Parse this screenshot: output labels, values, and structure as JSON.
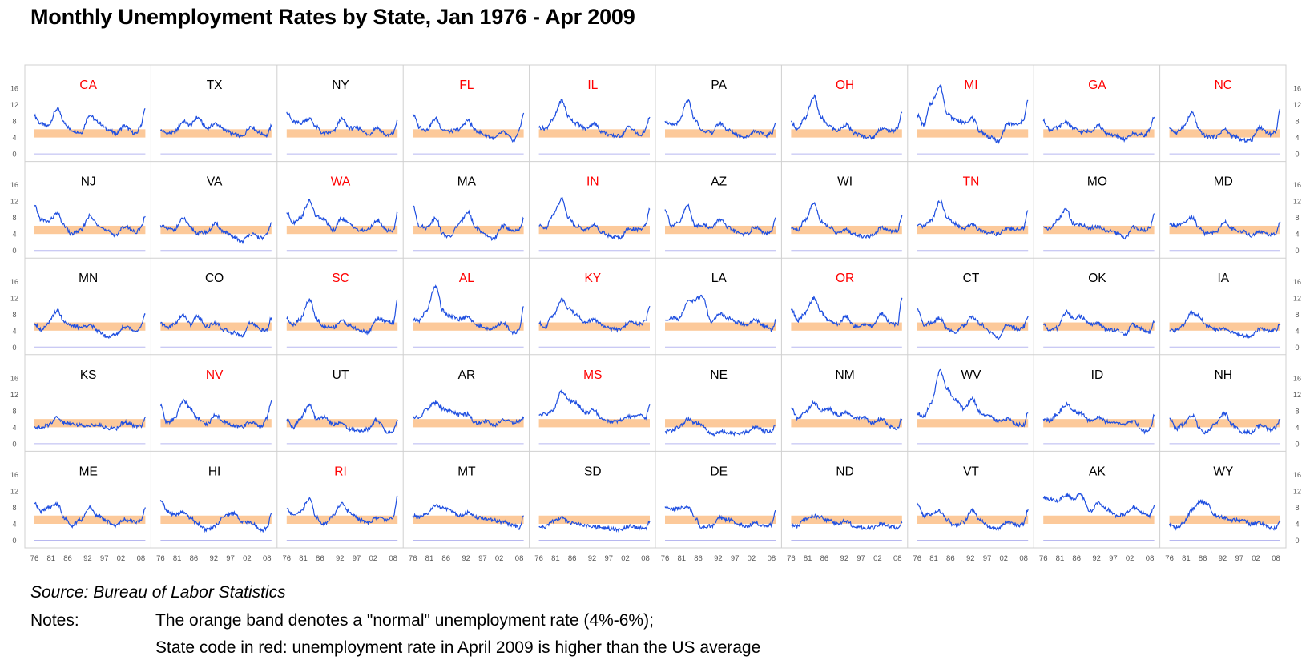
{
  "title": "Monthly Unemployment Rates by State, Jan 1976 - Apr 2009",
  "source": "Source: Bureau of Labor Statistics",
  "notes_label": "Notes:",
  "notes": [
    "The orange band denotes a \"normal\" unemployment rate (4%-6%);",
    "State code in red: unemployment rate in April 2009 is higher than the US average"
  ],
  "colors": {
    "line": "#1f4fe0",
    "band": "#fcc99a",
    "highlight": "#ff0000",
    "normal_label": "#000000",
    "frame": "#d0d0d0",
    "baseline": "#b8b8f0",
    "tick_text": "#555555"
  },
  "chart_data": {
    "type": "line",
    "layout": "small-multiples",
    "x_label_years": [
      "76",
      "81",
      "86",
      "92",
      "97",
      "02",
      "08"
    ],
    "y_ticks": [
      0,
      4,
      8,
      12,
      16
    ],
    "ylim": [
      0,
      17
    ],
    "xlim": [
      1976.0,
      2009.33
    ],
    "band": [
      4,
      6
    ],
    "anchor_years": [
      1976,
      1978,
      1980,
      1982.9,
      1985,
      1987,
      1990,
      1992.5,
      1995,
      1998,
      2000.5,
      2003,
      2006.5,
      2008,
      2009.3
    ],
    "states": [
      {
        "code": "CA",
        "red": true,
        "values": [
          9.2,
          7.2,
          6.8,
          11.0,
          7.6,
          5.8,
          5.2,
          9.5,
          7.8,
          6.0,
          4.9,
          6.8,
          4.8,
          7.0,
          11.0
        ]
      },
      {
        "code": "TX",
        "red": false,
        "values": [
          5.7,
          5.0,
          5.2,
          7.9,
          7.0,
          8.9,
          6.2,
          7.4,
          6.0,
          4.8,
          4.2,
          6.7,
          4.9,
          4.5,
          6.7
        ]
      },
      {
        "code": "NY",
        "red": false,
        "values": [
          10.2,
          7.8,
          7.5,
          8.6,
          6.5,
          4.9,
          5.4,
          8.5,
          6.3,
          6.2,
          4.6,
          6.4,
          4.4,
          5.0,
          8.1
        ]
      },
      {
        "code": "FL",
        "red": true,
        "values": [
          9.7,
          6.5,
          5.8,
          8.6,
          6.0,
          5.4,
          6.0,
          8.2,
          5.6,
          4.6,
          3.8,
          5.3,
          3.3,
          5.8,
          10.0
        ]
      },
      {
        "code": "IL",
        "red": true,
        "values": [
          6.4,
          6.2,
          8.2,
          13.0,
          9.0,
          7.5,
          6.2,
          7.5,
          5.4,
          4.4,
          4.4,
          6.6,
          4.5,
          5.8,
          9.0
        ]
      },
      {
        "code": "PA",
        "red": false,
        "values": [
          8.0,
          7.0,
          7.6,
          13.0,
          8.4,
          5.8,
          5.2,
          7.5,
          5.8,
          4.6,
          4.1,
          5.6,
          4.5,
          5.0,
          7.6
        ]
      },
      {
        "code": "OH",
        "red": true,
        "values": [
          7.8,
          5.9,
          8.5,
          14.0,
          8.9,
          7.0,
          5.6,
          7.2,
          5.0,
          4.3,
          4.0,
          6.2,
          5.5,
          6.5,
          10.0
        ]
      },
      {
        "code": "MI",
        "red": true,
        "values": [
          9.5,
          7.0,
          12.2,
          16.5,
          10.0,
          8.5,
          7.5,
          8.8,
          5.4,
          4.0,
          3.0,
          7.3,
          7.1,
          8.5,
          13.0
        ]
      },
      {
        "code": "GA",
        "red": true,
        "values": [
          8.0,
          5.9,
          6.3,
          7.8,
          6.3,
          5.4,
          5.5,
          7.0,
          5.0,
          4.3,
          3.5,
          4.9,
          4.6,
          6.0,
          9.0
        ]
      },
      {
        "code": "NC",
        "red": true,
        "values": [
          6.4,
          5.0,
          6.5,
          10.0,
          5.6,
          4.3,
          4.2,
          6.0,
          4.4,
          3.3,
          3.3,
          6.5,
          4.8,
          5.6,
          10.8
        ]
      },
      {
        "code": "NJ",
        "red": false,
        "values": [
          10.8,
          7.5,
          7.0,
          9.0,
          6.0,
          4.0,
          4.9,
          8.4,
          6.4,
          4.6,
          3.8,
          5.8,
          4.5,
          5.4,
          8.3
        ]
      },
      {
        "code": "VA",
        "red": false,
        "values": [
          6.1,
          5.2,
          5.0,
          7.8,
          5.5,
          4.2,
          4.4,
          6.5,
          4.5,
          3.2,
          2.2,
          4.0,
          3.0,
          3.8,
          6.8
        ]
      },
      {
        "code": "WA",
        "red": true,
        "values": [
          9.2,
          6.8,
          7.9,
          12.0,
          8.2,
          7.6,
          4.9,
          7.8,
          6.4,
          4.8,
          5.0,
          7.3,
          4.8,
          4.8,
          9.1
        ]
      },
      {
        "code": "MA",
        "red": false,
        "values": [
          10.8,
          6.0,
          5.5,
          8.0,
          4.0,
          3.2,
          6.5,
          9.5,
          5.5,
          3.6,
          2.8,
          6.0,
          4.6,
          5.0,
          7.6
        ]
      },
      {
        "code": "IN",
        "red": true,
        "values": [
          6.0,
          5.5,
          8.5,
          12.5,
          8.0,
          6.0,
          5.0,
          6.2,
          4.5,
          3.3,
          3.2,
          5.3,
          5.0,
          6.0,
          10.0
        ]
      },
      {
        "code": "AZ",
        "red": false,
        "values": [
          10.0,
          6.0,
          6.6,
          11.0,
          6.0,
          6.3,
          5.5,
          7.6,
          5.5,
          4.3,
          3.9,
          5.7,
          4.0,
          4.5,
          8.0
        ]
      },
      {
        "code": "WI",
        "red": false,
        "values": [
          5.5,
          4.9,
          7.2,
          11.5,
          7.2,
          6.0,
          4.2,
          5.0,
          3.9,
          3.4,
          3.5,
          5.6,
          4.7,
          4.8,
          8.5
        ]
      },
      {
        "code": "TN",
        "red": true,
        "values": [
          6.0,
          5.8,
          7.2,
          12.0,
          8.0,
          6.5,
          5.2,
          6.4,
          5.0,
          4.2,
          4.0,
          5.3,
          5.0,
          5.5,
          9.7
        ]
      },
      {
        "code": "MO",
        "red": false,
        "values": [
          5.8,
          5.2,
          7.2,
          10.0,
          6.5,
          6.3,
          5.5,
          5.8,
          4.8,
          4.2,
          3.0,
          5.6,
          4.8,
          5.5,
          9.0
        ]
      },
      {
        "code": "MD",
        "red": false,
        "values": [
          6.4,
          6.0,
          6.5,
          8.0,
          5.5,
          4.0,
          4.5,
          7.0,
          5.2,
          4.6,
          3.6,
          4.6,
          3.7,
          4.0,
          7.0
        ]
      },
      {
        "code": "MN",
        "red": false,
        "values": [
          5.8,
          4.2,
          5.8,
          9.0,
          6.2,
          5.2,
          4.8,
          5.5,
          4.0,
          2.6,
          3.0,
          5.0,
          4.0,
          5.0,
          8.0
        ]
      },
      {
        "code": "CO",
        "red": false,
        "values": [
          5.8,
          4.8,
          5.6,
          7.8,
          5.5,
          7.5,
          5.0,
          6.0,
          4.2,
          3.5,
          2.7,
          6.0,
          4.2,
          4.0,
          7.2
        ]
      },
      {
        "code": "SC",
        "red": true,
        "values": [
          6.9,
          5.5,
          6.8,
          11.5,
          6.8,
          5.0,
          4.8,
          6.5,
          5.2,
          4.0,
          3.6,
          6.8,
          6.3,
          5.8,
          11.5
        ]
      },
      {
        "code": "AL",
        "red": true,
        "values": [
          6.6,
          6.5,
          8.8,
          15.0,
          9.0,
          7.6,
          6.8,
          7.5,
          5.5,
          4.5,
          4.6,
          5.9,
          3.5,
          4.0,
          9.9
        ]
      },
      {
        "code": "KY",
        "red": true,
        "values": [
          5.8,
          5.0,
          7.5,
          11.5,
          9.5,
          8.0,
          6.0,
          6.8,
          5.4,
          4.4,
          4.2,
          6.0,
          5.6,
          6.2,
          10.0
        ]
      },
      {
        "code": "LA",
        "red": false,
        "values": [
          6.5,
          7.2,
          6.8,
          11.0,
          11.5,
          12.5,
          6.2,
          8.2,
          7.0,
          6.0,
          5.2,
          6.6,
          5.0,
          4.0,
          6.5
        ]
      },
      {
        "code": "OR",
        "red": true,
        "values": [
          9.3,
          6.5,
          8.0,
          12.0,
          8.5,
          6.6,
          5.5,
          7.5,
          5.0,
          5.6,
          5.2,
          8.2,
          5.5,
          5.5,
          12.0
        ]
      },
      {
        "code": "CT",
        "red": false,
        "values": [
          9.3,
          5.5,
          5.9,
          7.0,
          4.5,
          3.5,
          5.2,
          7.5,
          5.6,
          3.5,
          2.2,
          5.4,
          4.3,
          5.0,
          7.5
        ]
      },
      {
        "code": "OK",
        "red": false,
        "values": [
          5.5,
          4.0,
          4.6,
          8.6,
          7.0,
          7.5,
          5.6,
          5.7,
          4.2,
          4.2,
          3.0,
          5.5,
          4.0,
          3.6,
          6.0
        ]
      },
      {
        "code": "IA",
        "red": false,
        "values": [
          4.0,
          4.0,
          5.5,
          8.5,
          7.5,
          5.2,
          4.2,
          4.6,
          3.5,
          2.8,
          2.6,
          4.5,
          3.7,
          4.2,
          5.5
        ]
      },
      {
        "code": "KS",
        "red": false,
        "values": [
          4.2,
          3.8,
          4.5,
          6.5,
          5.0,
          5.0,
          4.5,
          4.5,
          4.6,
          3.8,
          3.7,
          5.3,
          4.2,
          4.4,
          6.4
        ]
      },
      {
        "code": "NV",
        "red": true,
        "values": [
          9.2,
          5.0,
          6.0,
          10.5,
          8.5,
          6.2,
          4.8,
          7.0,
          5.4,
          4.2,
          4.2,
          5.3,
          4.2,
          6.5,
          10.5
        ]
      },
      {
        "code": "UT",
        "red": false,
        "values": [
          5.7,
          4.0,
          6.0,
          9.5,
          6.0,
          6.5,
          4.8,
          5.0,
          3.6,
          3.2,
          3.6,
          5.8,
          2.6,
          3.0,
          5.8
        ]
      },
      {
        "code": "AR",
        "red": false,
        "values": [
          6.5,
          6.2,
          8.5,
          10.0,
          8.5,
          8.0,
          7.0,
          7.2,
          5.0,
          5.5,
          4.4,
          5.8,
          5.2,
          5.4,
          6.5
        ]
      },
      {
        "code": "MS",
        "red": true,
        "values": [
          7.0,
          7.2,
          7.8,
          12.8,
          10.5,
          10.0,
          7.5,
          8.2,
          6.0,
          5.2,
          5.6,
          6.5,
          6.8,
          6.0,
          9.5
        ]
      },
      {
        "code": "NE",
        "red": false,
        "values": [
          3.0,
          3.2,
          4.0,
          6.0,
          5.0,
          4.5,
          2.2,
          3.0,
          2.6,
          2.4,
          2.8,
          4.0,
          3.0,
          3.2,
          4.6
        ]
      },
      {
        "code": "NM",
        "red": false,
        "values": [
          8.5,
          6.2,
          7.5,
          10.0,
          8.0,
          8.6,
          7.0,
          7.5,
          6.4,
          6.2,
          5.0,
          6.0,
          4.0,
          3.7,
          6.0
        ]
      },
      {
        "code": "WV",
        "red": false,
        "values": [
          7.5,
          6.5,
          9.5,
          18.0,
          13.5,
          11.0,
          8.5,
          11.0,
          7.5,
          6.5,
          5.5,
          6.0,
          4.6,
          4.5,
          7.5
        ]
      },
      {
        "code": "ID",
        "red": false,
        "values": [
          6.0,
          5.5,
          7.2,
          9.5,
          8.0,
          7.4,
          5.6,
          6.5,
          5.4,
          5.0,
          4.8,
          5.5,
          3.0,
          3.4,
          6.8
        ]
      },
      {
        "code": "NH",
        "red": false,
        "values": [
          6.2,
          3.6,
          4.6,
          7.0,
          4.0,
          2.6,
          5.0,
          7.5,
          4.5,
          2.8,
          2.8,
          4.5,
          3.5,
          4.0,
          6.0
        ]
      },
      {
        "code": "ME",
        "red": false,
        "values": [
          8.9,
          7.0,
          8.0,
          8.8,
          5.5,
          3.5,
          5.0,
          8.0,
          6.0,
          4.6,
          3.5,
          5.0,
          4.5,
          4.8,
          8.0
        ]
      },
      {
        "code": "HI",
        "red": false,
        "values": [
          9.8,
          7.0,
          6.2,
          6.8,
          5.5,
          4.0,
          2.5,
          3.5,
          6.0,
          6.5,
          4.5,
          4.3,
          2.5,
          3.0,
          6.7
        ]
      },
      {
        "code": "RI",
        "red": true,
        "values": [
          7.7,
          6.0,
          7.0,
          10.0,
          5.5,
          3.8,
          6.0,
          9.0,
          6.8,
          5.0,
          4.2,
          5.5,
          5.0,
          5.5,
          10.8
        ]
      },
      {
        "code": "MT",
        "red": false,
        "values": [
          6.0,
          5.5,
          6.2,
          8.6,
          7.8,
          7.4,
          6.0,
          6.7,
          5.5,
          5.2,
          4.8,
          4.5,
          3.5,
          3.0,
          6.0
        ]
      },
      {
        "code": "SD",
        "red": false,
        "values": [
          3.3,
          3.2,
          4.6,
          5.5,
          4.3,
          4.0,
          3.5,
          3.2,
          3.0,
          2.8,
          2.5,
          3.4,
          3.0,
          2.7,
          4.6
        ]
      },
      {
        "code": "DE",
        "red": false,
        "values": [
          8.2,
          7.5,
          7.8,
          8.2,
          5.5,
          3.0,
          3.5,
          5.5,
          5.0,
          4.0,
          3.5,
          4.2,
          3.5,
          3.8,
          7.2
        ]
      },
      {
        "code": "ND",
        "red": false,
        "values": [
          3.6,
          3.5,
          5.0,
          6.0,
          5.6,
          4.8,
          4.0,
          4.8,
          3.4,
          3.0,
          3.0,
          4.0,
          3.2,
          3.0,
          4.2
        ]
      },
      {
        "code": "VT",
        "red": false,
        "values": [
          9.1,
          5.9,
          6.4,
          7.0,
          5.0,
          3.5,
          4.5,
          7.2,
          4.8,
          3.0,
          2.8,
          4.4,
          3.6,
          4.0,
          7.5
        ]
      },
      {
        "code": "AK",
        "red": false,
        "values": [
          10.5,
          10.0,
          9.5,
          11.0,
          10.0,
          11.5,
          7.0,
          9.0,
          7.5,
          6.0,
          6.4,
          8.0,
          6.5,
          6.0,
          8.5
        ]
      },
      {
        "code": "WY",
        "red": false,
        "values": [
          4.0,
          3.0,
          4.0,
          7.5,
          9.5,
          9.0,
          6.0,
          5.6,
          4.9,
          5.0,
          3.8,
          4.2,
          3.0,
          3.0,
          4.5
        ]
      }
    ]
  }
}
